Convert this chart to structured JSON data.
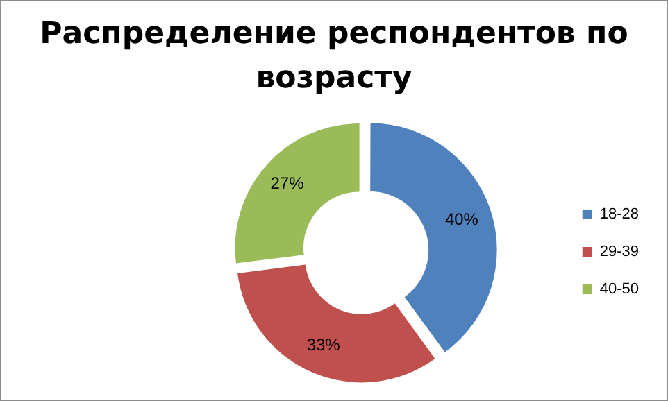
{
  "chart_data": {
    "type": "donut",
    "title": "Распределение респондентов по возрасту",
    "categories": [
      "18-28",
      "29-39",
      "40-50"
    ],
    "values": [
      40,
      33,
      27
    ],
    "colors": [
      "#4f81bd",
      "#c0504d",
      "#9bbb59"
    ],
    "value_labels": [
      "40%",
      "33%",
      "27%"
    ],
    "legend": "right"
  }
}
